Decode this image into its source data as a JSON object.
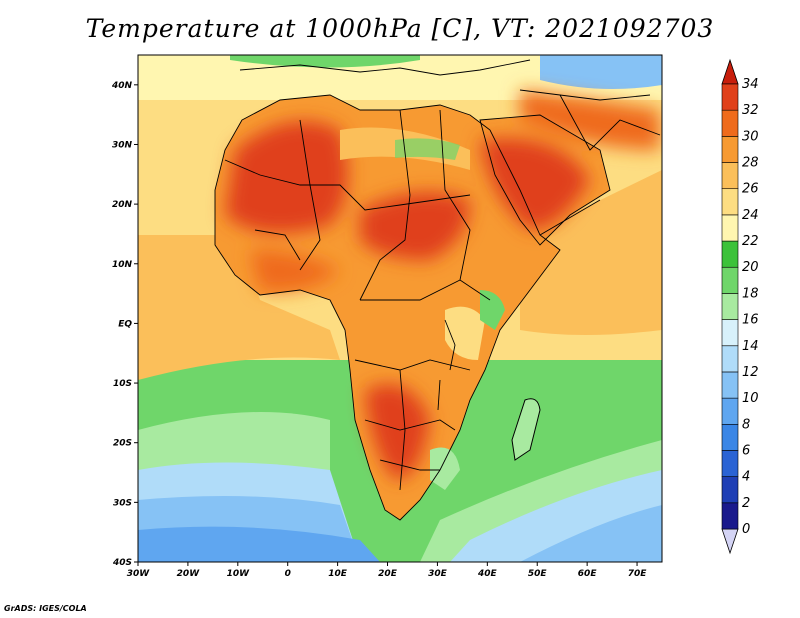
{
  "title": "Temperature at 1000hPa [C], VT: 2021092703",
  "credit": "GrADS: IGES/COLA",
  "map": {
    "lon_range": [
      -30,
      75
    ],
    "lat_range": [
      -40,
      45
    ],
    "x_ticks": [
      "30W",
      "20W",
      "10W",
      "0",
      "10E",
      "20E",
      "30E",
      "40E",
      "50E",
      "60E",
      "70E"
    ],
    "y_ticks": [
      "40N",
      "30N",
      "20N",
      "10N",
      "EQ",
      "10S",
      "20S",
      "30S",
      "40S"
    ]
  },
  "colorbar": {
    "labels": [
      "0",
      "2",
      "4",
      "6",
      "8",
      "10",
      "12",
      "14",
      "16",
      "18",
      "20",
      "22",
      "24",
      "26",
      "28",
      "30",
      "32",
      "34"
    ],
    "colors": [
      "#d4d4f5",
      "#1a1a8c",
      "#1f3fb5",
      "#2a63d4",
      "#3a86e6",
      "#5fa6f0",
      "#86c2f5",
      "#b0dcf9",
      "#d8f1fb",
      "#a8eaa0",
      "#6fd66a",
      "#3cc23a",
      "#fff6b0",
      "#fddd82",
      "#fbbf5a",
      "#f79a32",
      "#ef6b1c",
      "#e0401a",
      "#c81e0c"
    ]
  }
}
